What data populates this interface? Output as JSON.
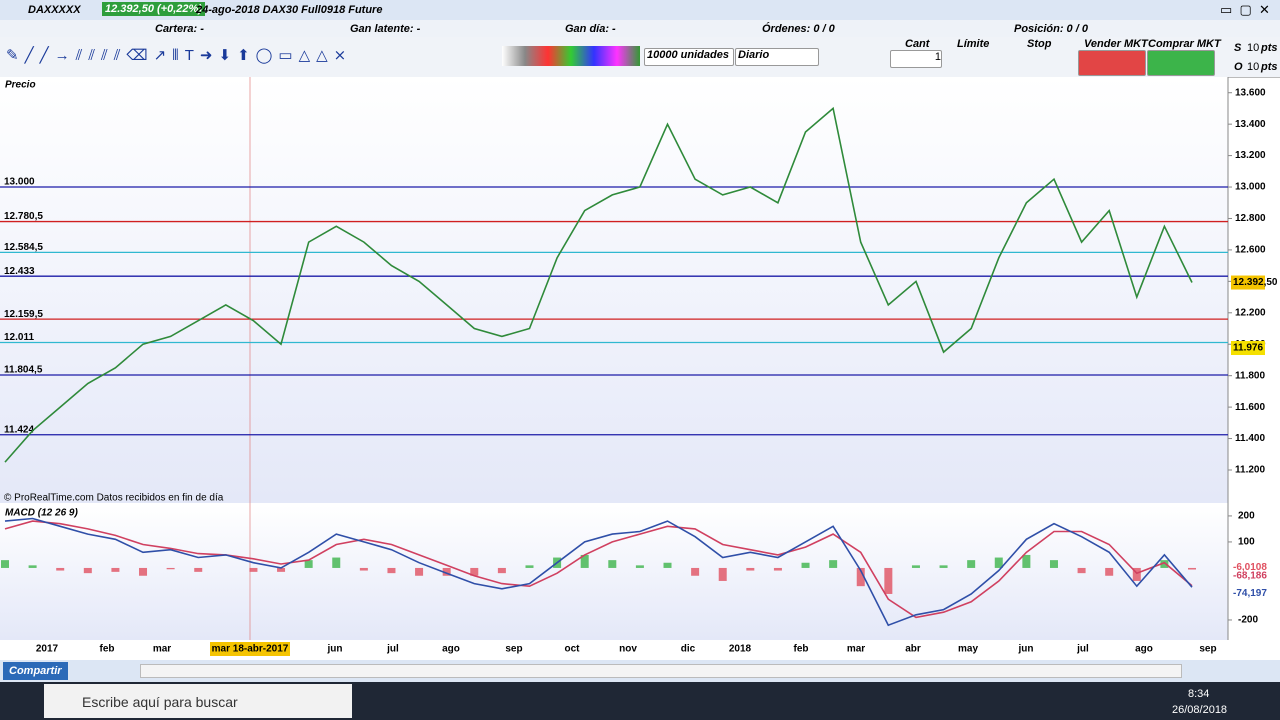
{
  "window": {
    "symbol": "DAXXXXX",
    "price_change": "12.392,50 (+0,22%)",
    "description": "24-ago-2018 DAX30 Full0918 Future"
  },
  "account": {
    "cartera": "Cartera: -",
    "gan_latente": "Gan latente: -",
    "gan_dia": "Gan día: -",
    "ordenes": "Órdenes: 0  / 0",
    "posicion": "Posición: 0  / 0"
  },
  "toolbar": {
    "units": "10000 unidades",
    "period": "Diario",
    "cant_label": "Cant",
    "cant": "1",
    "limite": "Límite",
    "stop": "Stop",
    "sell": "Vender MKT",
    "buy": "Comprar MKT",
    "s": "S",
    "s_pts": "10",
    "pts1": "pts",
    "o": "O",
    "o_pts": "10",
    "pts2": "pts"
  },
  "time_axis": {
    "labels": [
      "2017",
      "feb",
      "mar",
      "mar 18-abr-2017",
      "jun",
      "jul",
      "ago",
      "sep",
      "oct",
      "nov",
      "dic",
      "2018",
      "feb",
      "mar",
      "abr",
      "may",
      "jun",
      "jul",
      "ago",
      "sep"
    ]
  },
  "chart_data": [
    {
      "type": "line",
      "title": "Precio",
      "source": "© ProRealTime.com  Datos recibidos en fin de día",
      "color": "#2f8a3a",
      "values": [
        11250,
        11450,
        11600,
        11750,
        11850,
        12000,
        12050,
        12150,
        12250,
        12150,
        12000,
        12650,
        12750,
        12650,
        12500,
        12400,
        12250,
        12100,
        12050,
        12100,
        12550,
        12850,
        12950,
        13000,
        13400,
        13050,
        12950,
        13000,
        12900,
        13350,
        13500,
        12650,
        12250,
        12400,
        11950,
        12100,
        12550,
        12900,
        13050,
        12650,
        12850,
        12300,
        12750,
        12392.5
      ],
      "ylim": [
        10990,
        13700
      ],
      "yticks": [
        {
          "value": 11200,
          "label": "11.200"
        },
        {
          "value": 11400,
          "label": "11.400"
        },
        {
          "value": 11600,
          "label": "11.600"
        },
        {
          "value": 11800,
          "label": "11.800"
        },
        {
          "value": 12000,
          "label": "12.000"
        },
        {
          "value": 12200,
          "label": "12.200"
        },
        {
          "value": 12400,
          "label": "12.400"
        },
        {
          "value": 12600,
          "label": "12.600"
        },
        {
          "value": 12800,
          "label": "12.800"
        },
        {
          "value": 13000,
          "label": "13.000"
        },
        {
          "value": 13200,
          "label": "13.200"
        },
        {
          "value": 13400,
          "label": "13.400"
        },
        {
          "value": 13600,
          "label": "13.600"
        }
      ],
      "levels": [
        {
          "value": 13000,
          "label": "13.000",
          "color": "#1c1ca8"
        },
        {
          "value": 12780.5,
          "label": "12.780,5",
          "color": "#d02020"
        },
        {
          "value": 12584.5,
          "label": "12.584,5",
          "color": "#30b8d0"
        },
        {
          "value": 12433,
          "label": "12.433",
          "color": "#1c1ca8"
        },
        {
          "value": 12159.5,
          "label": "12.159,5",
          "color": "#d02020"
        },
        {
          "value": 12011,
          "label": "12.011",
          "color": "#30b8d0"
        },
        {
          "value": 11804.5,
          "label": "11.804,5",
          "color": "#1c1ca8"
        },
        {
          "value": 11424,
          "label": "11.424",
          "color": "#1c1ca8"
        }
      ],
      "last_price": {
        "value": 12392.5,
        "label": "12.392,50"
      },
      "marker_price": {
        "value": 11976,
        "label": "11.976"
      }
    },
    {
      "type": "macd",
      "title": "MACD (12 26 9)",
      "ylim": [
        -277,
        242
      ],
      "yticks": [
        200,
        100,
        -200
      ],
      "series": [
        {
          "color": "#2f4fa8",
          "values": [
            180,
            190,
            160,
            130,
            110,
            60,
            70,
            40,
            50,
            20,
            0,
            60,
            130,
            100,
            70,
            20,
            -20,
            -60,
            -80,
            -60,
            20,
            100,
            130,
            140,
            180,
            120,
            40,
            60,
            40,
            100,
            160,
            -10,
            -220,
            -180,
            -160,
            -100,
            -10,
            110,
            170,
            120,
            60,
            -70,
            50,
            -74.197
          ],
          "value_labels": [
            "-74,197"
          ]
        },
        {
          "color": "#d04060",
          "values": [
            150,
            180,
            170,
            150,
            125,
            90,
            75,
            55,
            50,
            35,
            15,
            30,
            90,
            110,
            90,
            50,
            10,
            -30,
            -60,
            -70,
            -20,
            50,
            100,
            130,
            160,
            150,
            90,
            70,
            50,
            80,
            130,
            60,
            -120,
            -190,
            -170,
            -130,
            -50,
            60,
            140,
            140,
            90,
            -20,
            20,
            -68.186
          ],
          "value_labels": [
            "-68,186"
          ]
        },
        {
          "color": "#3cb44a",
          "negative_color": "#e05060",
          "values": [
            30,
            10,
            -10,
            -20,
            -15,
            -30,
            -5,
            -15,
            0,
            -15,
            -15,
            30,
            40,
            -10,
            -20,
            -30,
            -30,
            -30,
            -20,
            10,
            40,
            50,
            30,
            10,
            20,
            -30,
            -50,
            -10,
            -10,
            20,
            30,
            -70,
            -100,
            10,
            10,
            30,
            40,
            50,
            30,
            -20,
            -30,
            -50,
            30,
            -6.0108
          ],
          "value_labels": [
            "-6,0108"
          ]
        }
      ]
    }
  ],
  "footer": {
    "share": "Compartir"
  },
  "taskbar": {
    "search": "Escribe aquí para buscar",
    "time": "8:34",
    "date": "26/08/2018"
  }
}
